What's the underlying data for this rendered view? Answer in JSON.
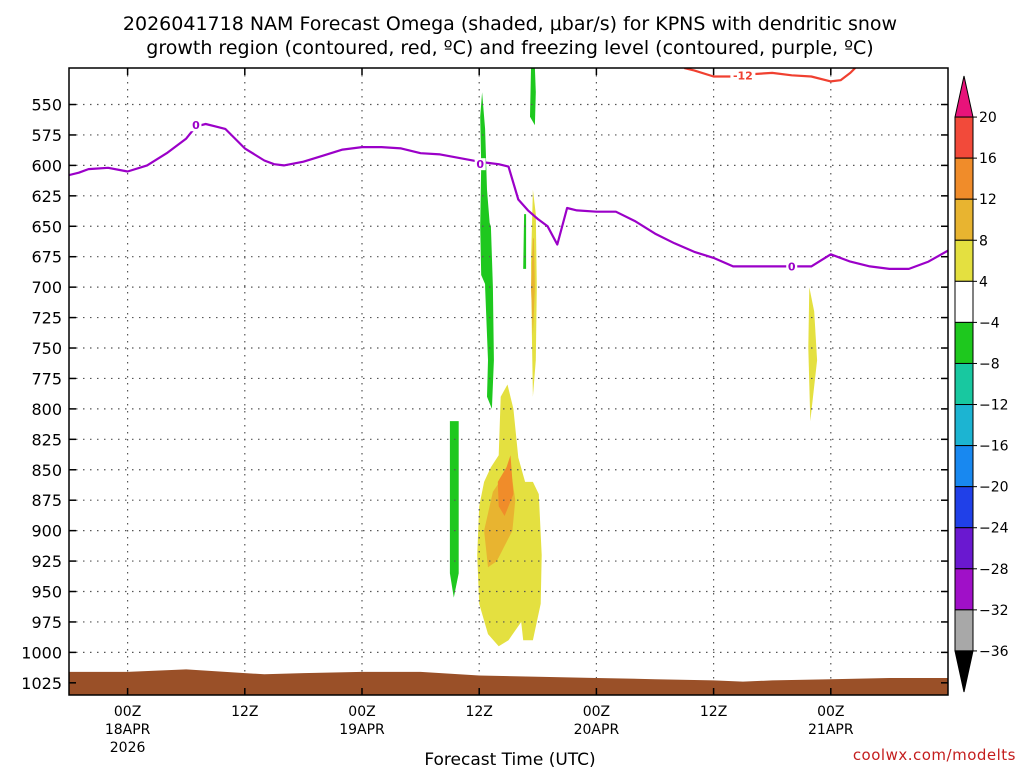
{
  "title_line1": "2026041718 NAM Forecast Omega (shaded, μbar/s) for KPNS with dendritic snow",
  "title_line2": "growth region (contoured, red, ºC) and freezing level (contoured, purple, ºC)",
  "credit": "coolwx.com/modelts",
  "colors": {
    "freezing_line": "#9b00c8",
    "dgz_line": "#f04030",
    "terrain": "#9a5028",
    "grid": "#555555"
  },
  "chart_data": {
    "type": "heatmap",
    "xlabel": "Forecast Time (UTC)",
    "x_range_hours": [
      -6,
      84
    ],
    "y_range_mb": [
      520,
      1035
    ],
    "y_ticks": [
      550,
      575,
      600,
      625,
      650,
      675,
      700,
      725,
      750,
      775,
      800,
      825,
      850,
      875,
      900,
      925,
      950,
      975,
      1000,
      1025
    ],
    "x_ticks": [
      {
        "hour": 0,
        "label": "00Z",
        "date": "18APR",
        "year": "2026"
      },
      {
        "hour": 12,
        "label": "12Z",
        "date": "",
        "year": ""
      },
      {
        "hour": 24,
        "label": "00Z",
        "date": "19APR",
        "year": ""
      },
      {
        "hour": 36,
        "label": "12Z",
        "date": "",
        "year": ""
      },
      {
        "hour": 48,
        "label": "00Z",
        "date": "20APR",
        "year": ""
      },
      {
        "hour": 60,
        "label": "12Z",
        "date": "",
        "year": ""
      },
      {
        "hour": 72,
        "label": "00Z",
        "date": "21APR",
        "year": ""
      }
    ],
    "grid": true,
    "freezing_level": {
      "contour_value": "0",
      "hours": [
        -6,
        -5,
        -4,
        -2,
        0,
        2,
        4,
        6,
        7,
        8,
        9,
        10,
        12,
        14,
        15,
        16,
        18,
        20,
        22,
        24,
        26,
        28,
        30,
        32,
        34,
        36,
        37,
        38,
        39,
        40,
        41,
        42,
        43,
        44,
        45,
        46,
        48,
        50,
        52,
        54,
        56,
        58,
        60,
        62,
        64,
        66,
        68,
        70,
        72,
        74,
        76,
        78,
        80,
        82,
        84
      ],
      "pressure": [
        608,
        606,
        603,
        602,
        605,
        600,
        590,
        578,
        568,
        566,
        568,
        570,
        586,
        596,
        599,
        600,
        597,
        592,
        587,
        585,
        585,
        586,
        590,
        591,
        594,
        597,
        598,
        599,
        601,
        628,
        637,
        644,
        650,
        665,
        635,
        637,
        638,
        638,
        646,
        656,
        664,
        671,
        676,
        683,
        683,
        683,
        683,
        683,
        673,
        679,
        683,
        685,
        685,
        679,
        670
      ],
      "labels": [
        {
          "hour": 7,
          "pressure": 567
        },
        {
          "hour": 36.1,
          "pressure": 599
        },
        {
          "hour": 68,
          "pressure": 683
        }
      ]
    },
    "dgz": {
      "contour_value": "-12",
      "hours": [
        57,
        58,
        60,
        62,
        64,
        66,
        68,
        70,
        72,
        73,
        74,
        74.5
      ],
      "pressure": [
        520,
        522,
        527,
        527,
        525,
        524,
        526,
        527,
        531,
        530,
        524,
        520
      ],
      "labels": [
        {
          "hour": 63,
          "pressure": 526
        }
      ]
    },
    "terrain": {
      "hours": [
        -6,
        0,
        6,
        10,
        14,
        18,
        24,
        30,
        36,
        42,
        48,
        54,
        60,
        63,
        66,
        72,
        78,
        84
      ],
      "pressure": [
        1016,
        1016,
        1014,
        1016,
        1018,
        1017,
        1016,
        1016,
        1019,
        1020,
        1021,
        1022,
        1023,
        1024,
        1023,
        1022,
        1021,
        1021
      ]
    },
    "omega_regions": [
      {
        "level": -8,
        "poly": [
          [
            36.3,
            540
          ],
          [
            36.1,
            560
          ],
          [
            36.2,
            600
          ],
          [
            36.1,
            650
          ],
          [
            36.2,
            690
          ],
          [
            37.0,
            705
          ],
          [
            37.2,
            660
          ],
          [
            36.8,
            620
          ],
          [
            36.6,
            570
          ]
        ]
      },
      {
        "level": -8,
        "poly": [
          [
            36.7,
            640
          ],
          [
            36.6,
            700
          ],
          [
            36.9,
            760
          ],
          [
            36.8,
            790
          ],
          [
            37.3,
            800
          ],
          [
            37.5,
            760
          ],
          [
            37.4,
            700
          ],
          [
            37.2,
            650
          ]
        ]
      },
      {
        "level": -8,
        "poly": [
          [
            41.3,
            520
          ],
          [
            41.2,
            560
          ],
          [
            41.7,
            567
          ],
          [
            41.8,
            540
          ],
          [
            41.7,
            520
          ]
        ]
      },
      {
        "level": -8,
        "poly": [
          [
            33.0,
            810
          ],
          [
            33.0,
            935
          ],
          [
            33.4,
            955
          ],
          [
            33.9,
            935
          ],
          [
            33.9,
            810
          ]
        ]
      },
      {
        "level": -8,
        "poly": [
          [
            40.6,
            640
          ],
          [
            40.5,
            685
          ],
          [
            40.8,
            685
          ],
          [
            40.8,
            640
          ]
        ]
      },
      {
        "level": 4,
        "poly": [
          [
            36.0,
            880
          ],
          [
            36.5,
            860
          ],
          [
            37.2,
            848
          ],
          [
            38.0,
            838
          ],
          [
            38.2,
            790
          ],
          [
            38.9,
            780
          ],
          [
            39.5,
            800
          ],
          [
            40.0,
            840
          ],
          [
            40.7,
            860
          ],
          [
            41.5,
            860
          ],
          [
            42.1,
            870
          ],
          [
            42.4,
            920
          ],
          [
            42.3,
            960
          ],
          [
            41.5,
            990
          ],
          [
            40.5,
            990
          ],
          [
            40.3,
            975
          ],
          [
            39.0,
            990
          ],
          [
            38.0,
            995
          ],
          [
            36.9,
            985
          ],
          [
            36.0,
            960
          ],
          [
            35.8,
            920
          ]
        ]
      },
      {
        "level": 4,
        "poly": [
          [
            41.5,
            620
          ],
          [
            41.3,
            680
          ],
          [
            41.4,
            740
          ],
          [
            41.5,
            790
          ],
          [
            41.8,
            760
          ],
          [
            41.9,
            700
          ],
          [
            41.8,
            640
          ]
        ]
      },
      {
        "level": 4,
        "poly": [
          [
            69.8,
            700
          ],
          [
            69.7,
            750
          ],
          [
            69.9,
            810
          ],
          [
            70.6,
            760
          ],
          [
            70.3,
            720
          ]
        ]
      },
      {
        "level": 8,
        "poly": [
          [
            36.5,
            900
          ],
          [
            37.4,
            868
          ],
          [
            38.5,
            855
          ],
          [
            39.2,
            848
          ],
          [
            39.7,
            875
          ],
          [
            39.4,
            900
          ],
          [
            37.8,
            925
          ],
          [
            36.9,
            930
          ]
        ]
      },
      {
        "level": 8,
        "poly": [
          [
            41.5,
            660
          ],
          [
            41.3,
            700
          ],
          [
            41.5,
            740
          ],
          [
            41.7,
            700
          ],
          [
            41.6,
            660
          ]
        ]
      },
      {
        "level": 12,
        "poly": [
          [
            37.9,
            860
          ],
          [
            38.8,
            848
          ],
          [
            39.2,
            838
          ],
          [
            39.5,
            870
          ],
          [
            38.6,
            888
          ],
          [
            38.0,
            880
          ]
        ]
      }
    ],
    "colorbar": {
      "levels": [
        20,
        16,
        12,
        8,
        4,
        -4,
        -8,
        -12,
        -16,
        -20,
        -24,
        -28,
        -32,
        -36
      ],
      "colors": [
        "#e8137a",
        "#f24a3a",
        "#f08c2a",
        "#e8b430",
        "#e4e040",
        "#ffffff",
        "#1ec81e",
        "#18c8a0",
        "#1cb4d2",
        "#1888f0",
        "#2040e8",
        "#6a18d0",
        "#a010c8",
        "#a8a8a8",
        "#000000"
      ]
    }
  }
}
